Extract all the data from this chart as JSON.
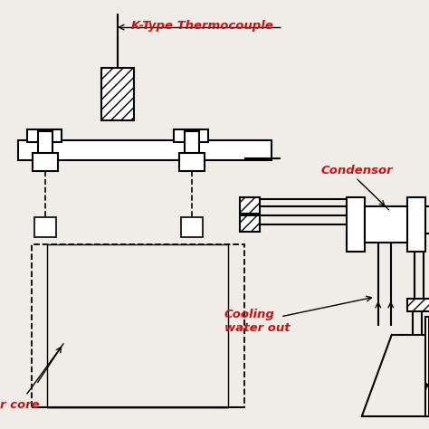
{
  "background_color": "#f0ede8",
  "line_color": "#111111",
  "label_color": "#cc1111",
  "labels": {
    "thermocouple": "K-Type Thermocouple",
    "condensor": "Condensor",
    "cooling_water_out": "Cooling\nwater out",
    "reactor_core": "r core"
  },
  "figsize": [
    4.74,
    4.74
  ],
  "dpi": 100
}
